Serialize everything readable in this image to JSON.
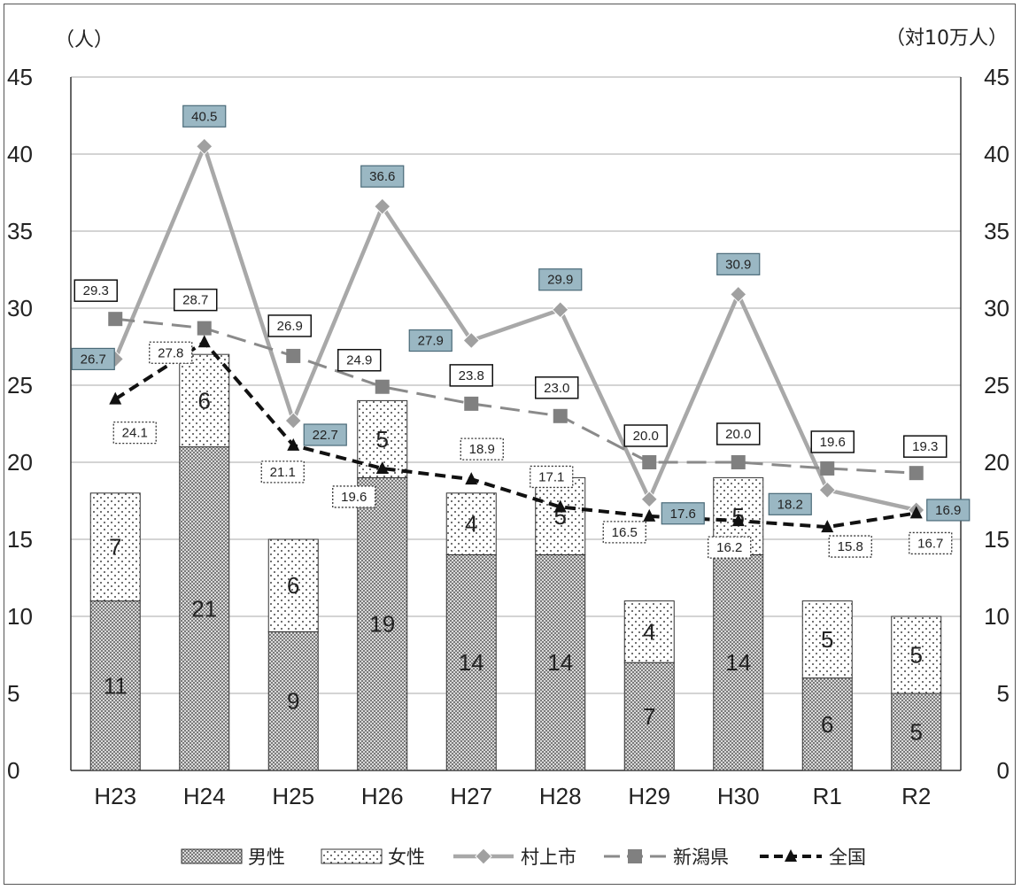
{
  "chart_data": {
    "type": "bar+line",
    "left_unit": "（人）",
    "right_unit": "（対10万人）",
    "categories": [
      "H23",
      "H24",
      "H25",
      "H26",
      "H27",
      "H28",
      "H29",
      "H30",
      "R1",
      "R2"
    ],
    "ylim": [
      0,
      45
    ],
    "yticks": [
      0,
      5,
      10,
      15,
      20,
      25,
      30,
      35,
      40,
      45
    ],
    "y2lim": [
      0,
      45
    ],
    "y2ticks": [
      0,
      5,
      10,
      15,
      20,
      25,
      30,
      35,
      40,
      45
    ],
    "grid": true,
    "legend_position": "bottom",
    "bars": [
      {
        "name": "男性",
        "values": [
          11,
          21,
          9,
          19,
          14,
          14,
          7,
          14,
          6,
          5
        ]
      },
      {
        "name": "女性",
        "values": [
          7,
          6,
          6,
          5,
          4,
          5,
          4,
          5,
          5,
          5
        ]
      }
    ],
    "lines": [
      {
        "name": "村上市",
        "marker": "diamond",
        "color": "#a8a8a8",
        "values": [
          26.7,
          40.5,
          22.7,
          36.6,
          27.9,
          29.9,
          17.6,
          30.9,
          18.2,
          16.9
        ],
        "labels": [
          "26.7",
          "40.5",
          "22.7",
          "36.6",
          "27.9",
          "29.9",
          "17.6",
          "30.9",
          "18.2",
          "16.9"
        ]
      },
      {
        "name": "新潟県",
        "marker": "square",
        "color": "#8a8a8a",
        "values": [
          29.3,
          28.7,
          26.9,
          24.9,
          23.8,
          23.0,
          20.0,
          20.0,
          19.6,
          19.3
        ],
        "labels": [
          "29.3",
          "28.7",
          "26.9",
          "24.9",
          "23.8",
          "23.0",
          "20.0",
          "20.0",
          "19.6",
          "19.3"
        ]
      },
      {
        "name": "全国",
        "marker": "triangle",
        "color": "#111111",
        "values": [
          24.1,
          27.8,
          21.1,
          19.6,
          18.9,
          17.1,
          16.5,
          16.2,
          15.8,
          16.7
        ],
        "labels": [
          "24.1",
          "27.8",
          "21.1",
          "19.6",
          "18.9",
          "17.1",
          "16.5",
          "16.2",
          "15.8",
          "16.7"
        ]
      }
    ]
  }
}
